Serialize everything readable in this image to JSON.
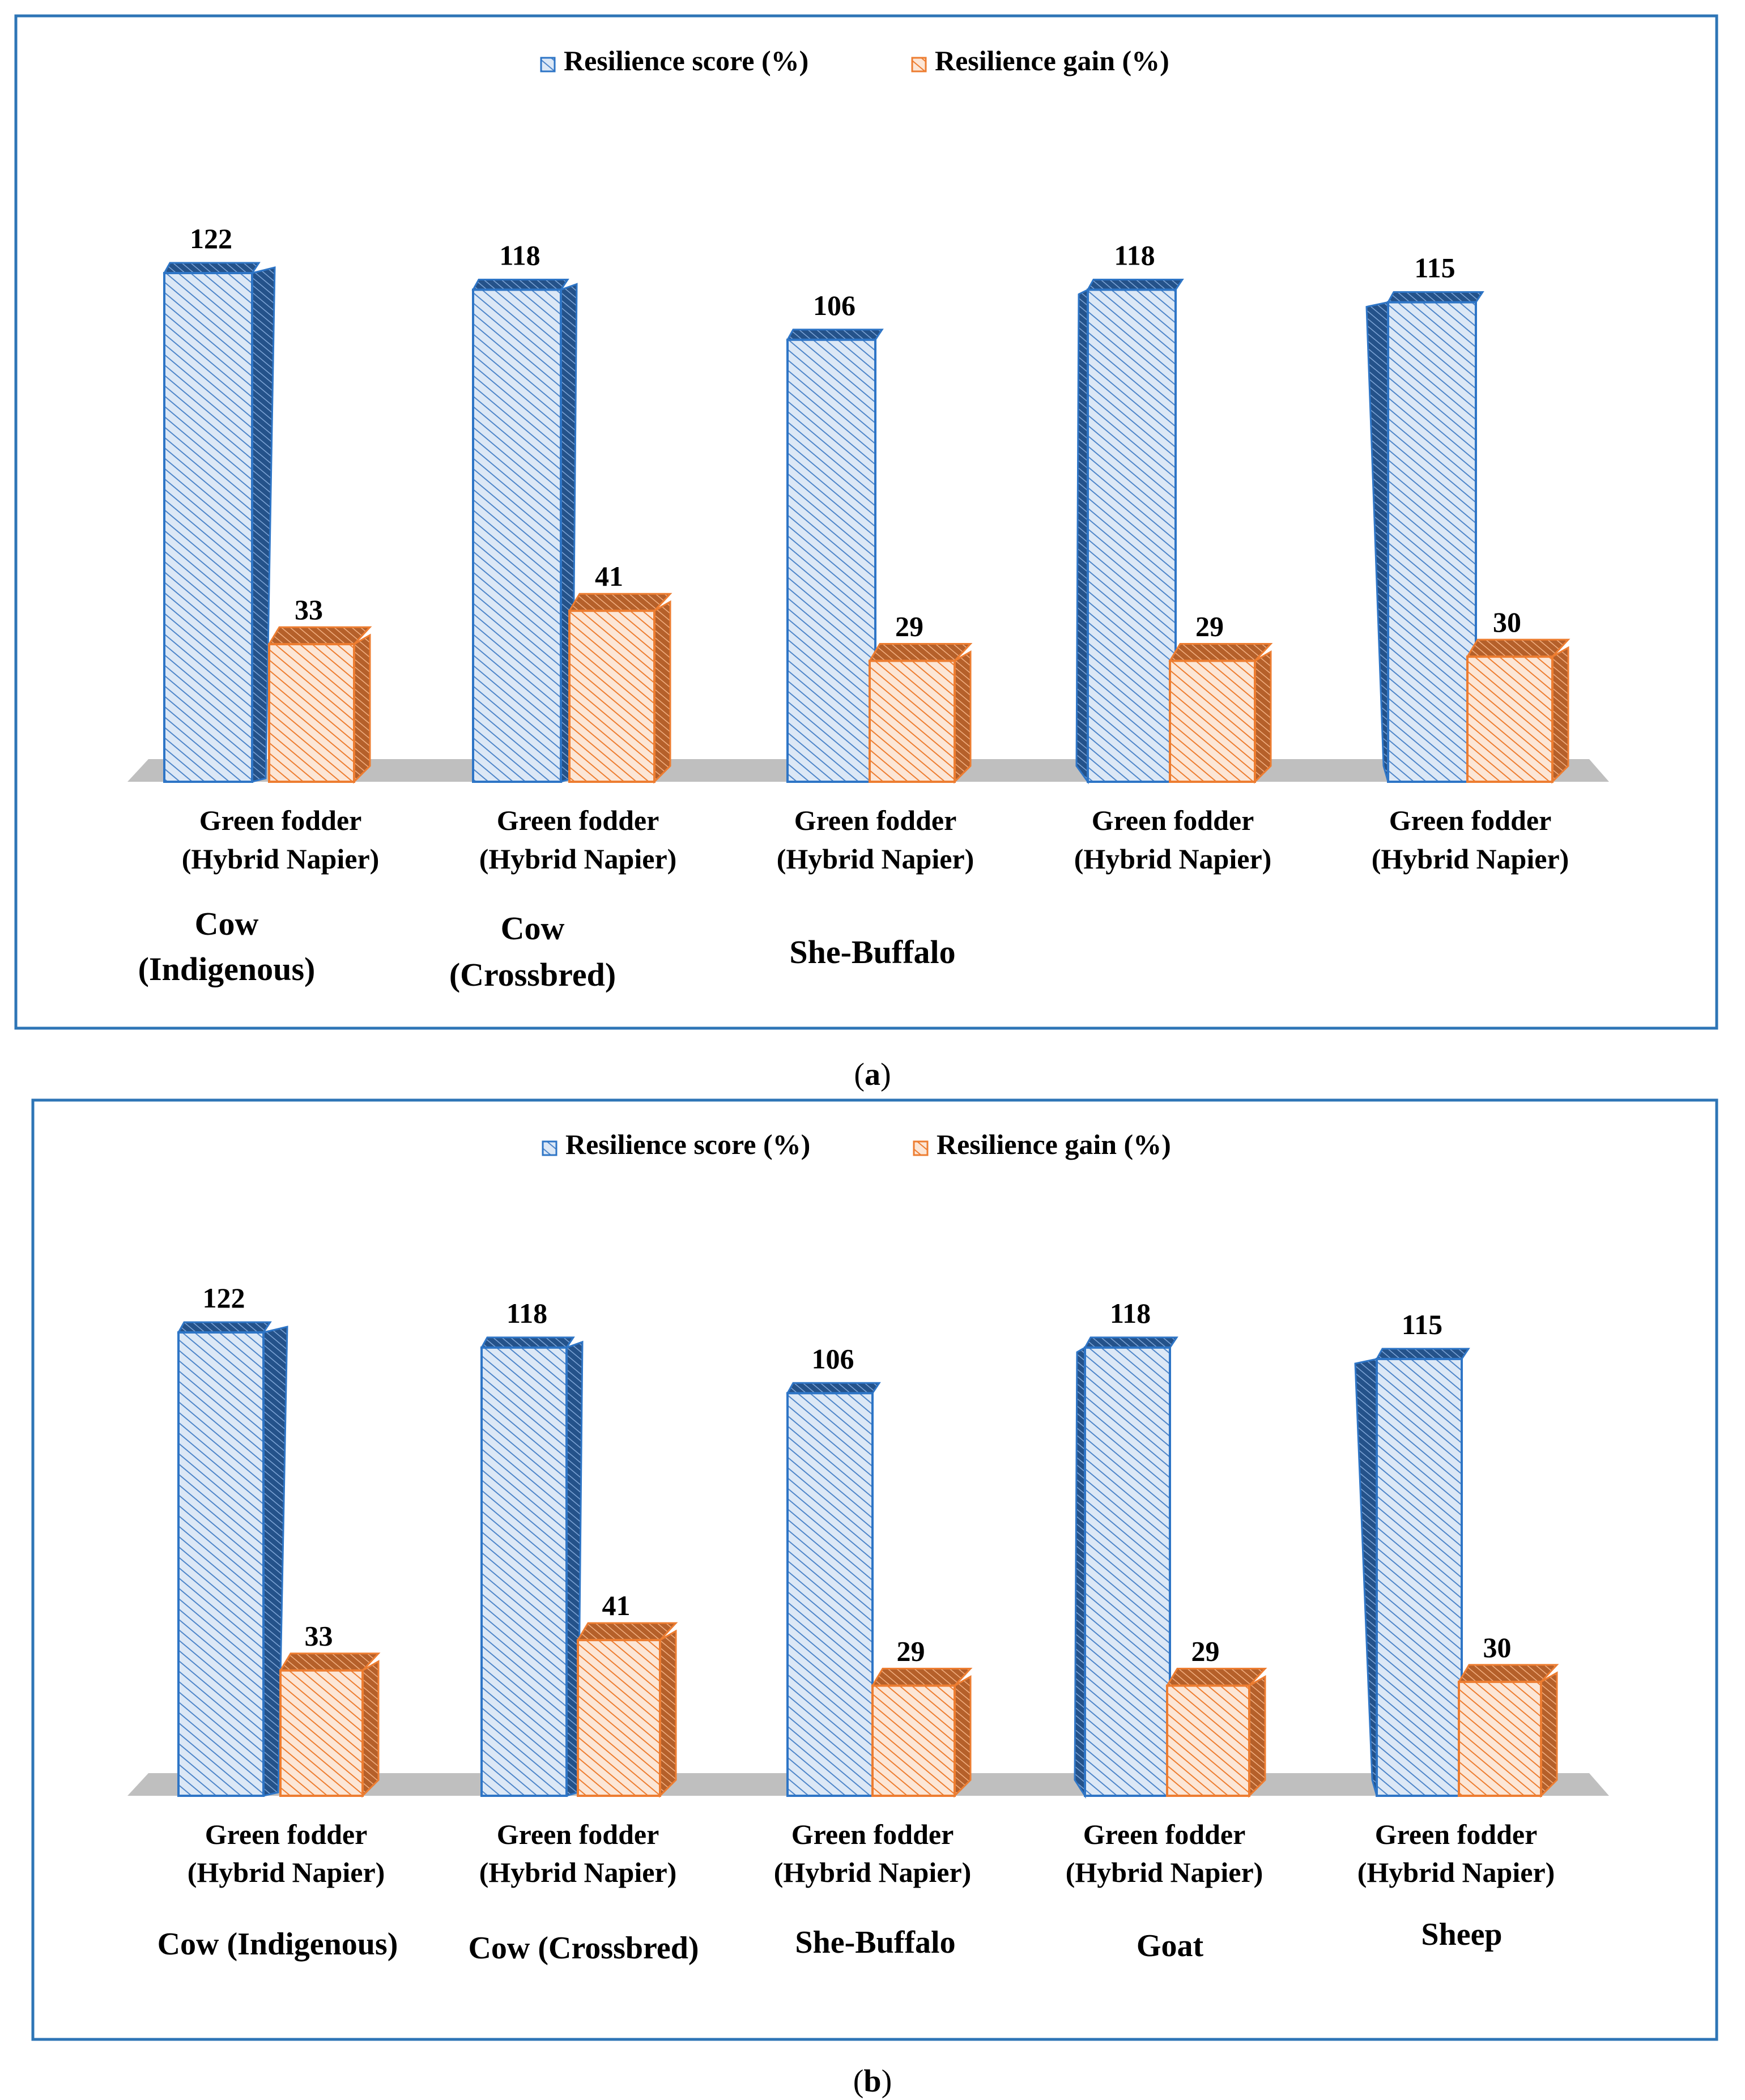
{
  "colors": {
    "score_stroke": "#2E75C6",
    "score_face": "#DCE8F6",
    "gain_stroke": "#ED7D31",
    "gain_face": "#FCE6D6",
    "floor": "#BFBFBF",
    "frame": "#2E75B6"
  },
  "chart_data": [
    {
      "type": "bar",
      "panel_caption_open": "(",
      "panel_letter": "a",
      "panel_caption_close": ")",
      "legend_placement": "top-center",
      "series": [
        {
          "name": "Resilience score (%)",
          "values": [
            122,
            118,
            106,
            118,
            115
          ]
        },
        {
          "name": "Resilience gain (%)",
          "values": [
            33,
            41,
            29,
            29,
            30
          ]
        }
      ],
      "category_line1": [
        "Green fodder",
        "Green fodder",
        "Green fodder",
        "Green fodder",
        "Green fodder"
      ],
      "category_line2": [
        "(Hybrid Napier)",
        "(Hybrid Napier)",
        "(Hybrid Napier)",
        "(Hybrid Napier)",
        "(Hybrid Napier)"
      ],
      "group_labels": [
        [
          "Cow",
          "(Indigenous)"
        ],
        [
          "Cow",
          "(Crossbred)"
        ],
        [
          "She-Buffalo"
        ]
      ],
      "ylim": [
        0,
        130
      ]
    },
    {
      "type": "bar",
      "panel_caption_open": "(",
      "panel_letter": "b",
      "panel_caption_close": ")",
      "legend_placement": "top-center",
      "series": [
        {
          "name": "Resilience score (%)",
          "values": [
            122,
            118,
            106,
            118,
            115
          ]
        },
        {
          "name": "Resilience gain (%)",
          "values": [
            33,
            41,
            29,
            29,
            30
          ]
        }
      ],
      "category_line1": [
        "Green fodder",
        "Green fodder",
        "Green fodder",
        "Green fodder",
        "Green fodder"
      ],
      "category_line2": [
        "(Hybrid Napier)",
        "(Hybrid Napier)",
        "(Hybrid Napier)",
        "(Hybrid Napier)",
        "(Hybrid Napier)"
      ],
      "group_labels": [
        [
          "Cow (Indigenous)"
        ],
        [
          "Cow (Crossbred)"
        ],
        [
          "She-Buffalo"
        ],
        [
          "Goat"
        ],
        [
          "Sheep"
        ]
      ],
      "ylim": [
        0,
        130
      ]
    }
  ]
}
